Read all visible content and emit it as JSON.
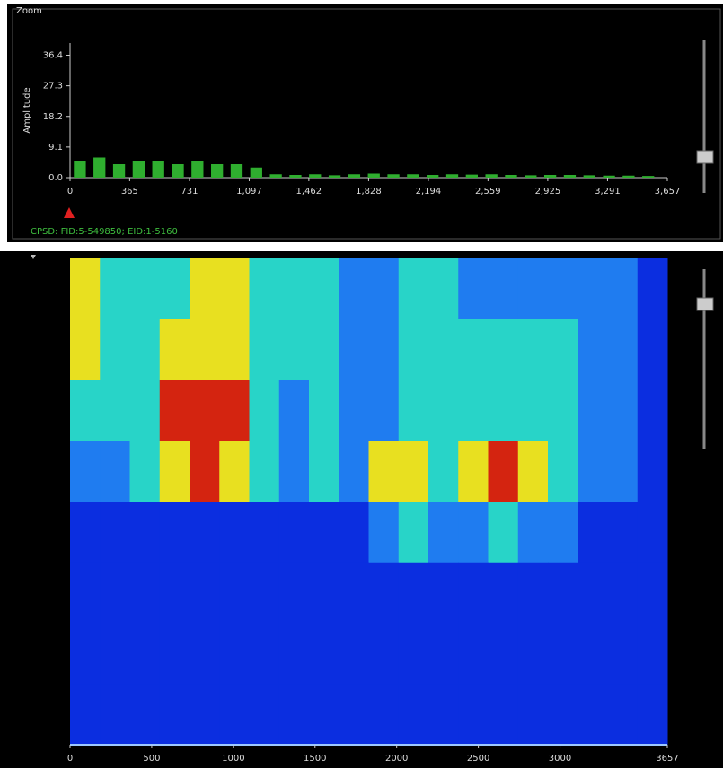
{
  "panel_label": "Zoom",
  "status": "CPSD: FID:5-549850; EID:1-5160",
  "chart_data": [
    {
      "type": "bar",
      "y_label": "Amplitude",
      "color": "#2fae2f",
      "x": [
        60,
        180,
        300,
        420,
        540,
        660,
        780,
        900,
        1020,
        1140,
        1260,
        1380,
        1500,
        1620,
        1740,
        1860,
        1980,
        2100,
        2220,
        2340,
        2460,
        2580,
        2700,
        2820,
        2940,
        3060,
        3180,
        3300,
        3420,
        3540
      ],
      "values": [
        5,
        6,
        4,
        5,
        5,
        4,
        5,
        4,
        4,
        3,
        1,
        0.8,
        1,
        0.7,
        1,
        1.2,
        1,
        1,
        0.8,
        1,
        0.9,
        1,
        0.8,
        0.7,
        0.8,
        0.8,
        0.7,
        0.6,
        0.6,
        0.5
      ],
      "xlim": [
        0,
        3657
      ],
      "ylim": [
        0,
        40
      ],
      "xticks": [
        0,
        365,
        731,
        {
          "value": 1097,
          "label": "1,097"
        },
        {
          "value": 1462,
          "label": "1,462"
        },
        {
          "value": 1828,
          "label": "1,828"
        },
        {
          "value": 2194,
          "label": "2,194"
        },
        {
          "value": 2559,
          "label": "2,559"
        },
        {
          "value": 2925,
          "label": "2,925"
        },
        {
          "value": 3291,
          "label": "3,291"
        },
        {
          "value": 3657,
          "label": "3,657"
        }
      ],
      "yticks": [
        {
          "value": 0,
          "label": "0.0"
        },
        9.1,
        18.2,
        27.3,
        36.4
      ]
    },
    {
      "type": "heatmap",
      "xlim": [
        0,
        3657
      ],
      "xticks": [
        0,
        500,
        1000,
        1500,
        2000,
        2500,
        3000,
        3657
      ],
      "colorscale": [
        "#0b2ee0",
        "#1f7cf0",
        "#28d4c8",
        "#e8e020",
        "#d42410"
      ],
      "z": [
        [
          3,
          2,
          2,
          2,
          3,
          3,
          2,
          2,
          2,
          1,
          1,
          2,
          2,
          1,
          1,
          1,
          1,
          1,
          1,
          0
        ],
        [
          3,
          2,
          2,
          3,
          3,
          3,
          2,
          2,
          2,
          1,
          1,
          2,
          2,
          2,
          2,
          2,
          2,
          1,
          1,
          0
        ],
        [
          2,
          2,
          2,
          4,
          4,
          4,
          2,
          1,
          2,
          1,
          1,
          2,
          2,
          2,
          2,
          2,
          2,
          1,
          1,
          0
        ],
        [
          1,
          1,
          2,
          3,
          4,
          3,
          2,
          1,
          2,
          1,
          3,
          3,
          2,
          3,
          4,
          3,
          2,
          1,
          1,
          0
        ],
        [
          0,
          0,
          0,
          0,
          0,
          0,
          0,
          0,
          0,
          0,
          1,
          2,
          1,
          1,
          2,
          1,
          1,
          0,
          0,
          0
        ],
        [
          0,
          0,
          0,
          0,
          0,
          0,
          0,
          0,
          0,
          0,
          0,
          0,
          0,
          0,
          0,
          0,
          0,
          0,
          0,
          0
        ],
        [
          0,
          0,
          0,
          0,
          0,
          0,
          0,
          0,
          0,
          0,
          0,
          0,
          0,
          0,
          0,
          0,
          0,
          0,
          0,
          0
        ],
        [
          0,
          0,
          0,
          0,
          0,
          0,
          0,
          0,
          0,
          0,
          0,
          0,
          0,
          0,
          0,
          0,
          0,
          0,
          0,
          0
        ]
      ]
    }
  ]
}
